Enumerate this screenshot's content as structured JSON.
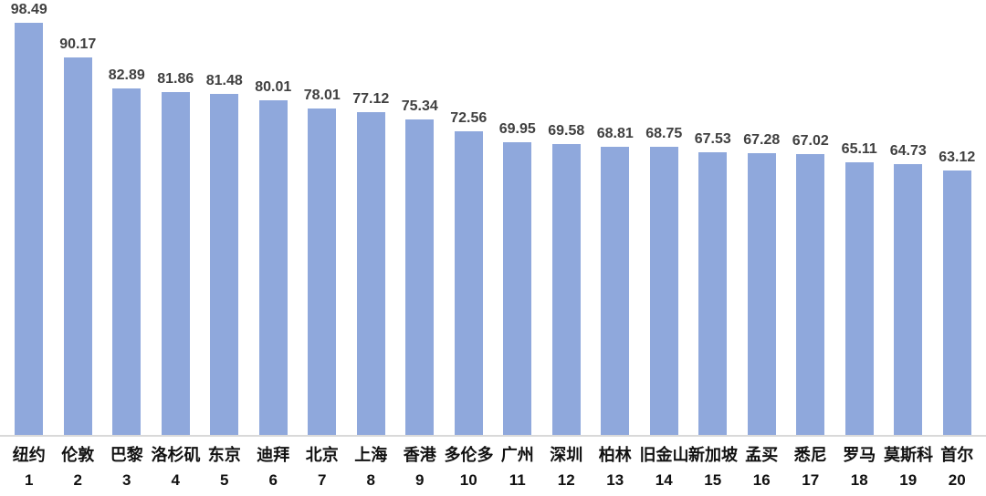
{
  "chart_data": {
    "type": "bar",
    "title": "",
    "xlabel": "",
    "ylabel": "",
    "ylim": [
      0,
      104
    ],
    "grid": false,
    "legend": false,
    "bar_color": "#8FA8DC",
    "axis_line_color": "#D9D9D9",
    "value_label_color": "#404040",
    "category_label_color": "#111111",
    "categories": [
      "纽约",
      "伦敦",
      "巴黎",
      "洛杉矶",
      "东京",
      "迪拜",
      "北京",
      "上海",
      "香港",
      "多伦多",
      "广州",
      "深圳",
      "柏林",
      "旧金山",
      "新加坡",
      "孟买",
      "悉尼",
      "罗马",
      "莫斯科",
      "首尔"
    ],
    "ranks": [
      "1",
      "2",
      "3",
      "4",
      "5",
      "6",
      "7",
      "8",
      "9",
      "10",
      "11",
      "12",
      "13",
      "14",
      "15",
      "16",
      "17",
      "18",
      "19",
      "20"
    ],
    "values": [
      98.49,
      90.17,
      82.89,
      81.86,
      81.48,
      80.01,
      78.01,
      77.12,
      75.34,
      72.56,
      69.95,
      69.58,
      68.81,
      68.75,
      67.53,
      67.28,
      67.02,
      65.11,
      64.73,
      63.12
    ],
    "value_labels": [
      "98.49",
      "90.17",
      "82.89",
      "81.86",
      "81.48",
      "80.01",
      "78.01",
      "77.12",
      "75.34",
      "72.56",
      "69.95",
      "69.58",
      "68.81",
      "68.75",
      "67.53",
      "67.28",
      "67.02",
      "65.11",
      "64.73",
      "63.12"
    ]
  }
}
